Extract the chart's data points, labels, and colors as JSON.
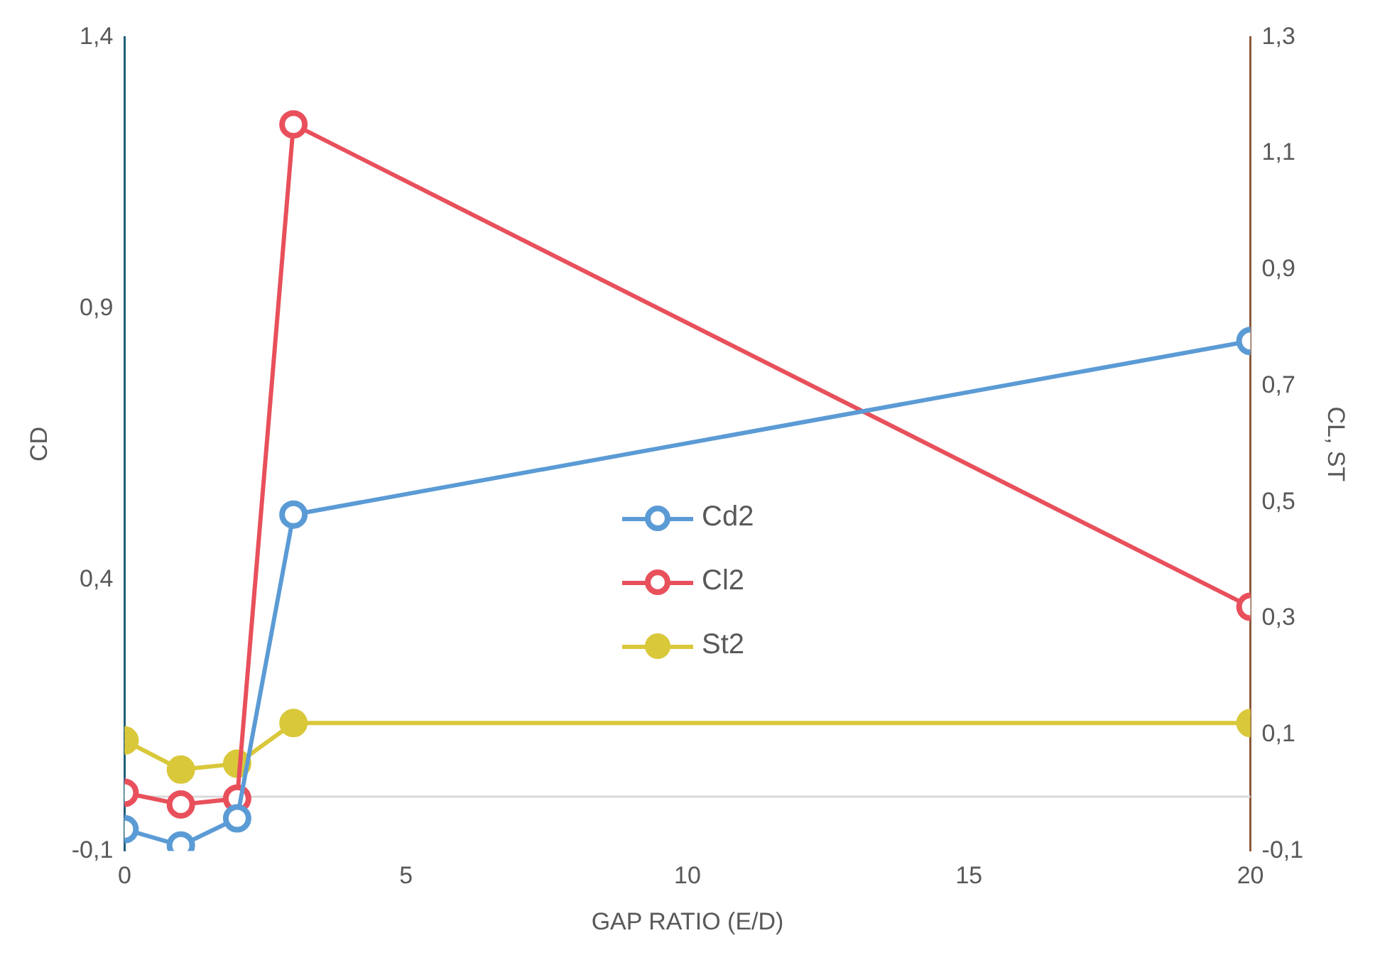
{
  "chart_data": {
    "type": "line",
    "xlabel": "GAP RATIO (E/D)",
    "ylabel": "CD",
    "y2label": "CL, ST",
    "x": [
      0,
      1,
      2,
      3,
      20
    ],
    "series": [
      {
        "name": "Cd2",
        "color": "#5b9bd5",
        "values": [
          -0.06,
          -0.09,
          -0.04,
          0.52,
          0.84
        ]
      },
      {
        "name": "Cl2",
        "color": "#e8505b",
        "axis": "y2",
        "values": [
          0.0,
          -0.02,
          -0.01,
          1.15,
          0.32
        ]
      },
      {
        "name": "St2",
        "color": "#d9c83a",
        "axis": "y2",
        "values": [
          0.09,
          0.04,
          0.05,
          0.12,
          0.12
        ]
      }
    ],
    "xlim": [
      0,
      20
    ],
    "xticks": [
      0,
      5,
      10,
      15,
      20
    ],
    "ylim": [
      -0.1,
      1.4
    ],
    "yticks": [
      {
        "value": -0.1,
        "label": "-0,1"
      },
      {
        "value": 0.4,
        "label": "0,4"
      },
      {
        "value": 0.9,
        "label": "0,9"
      },
      {
        "value": 1.4,
        "label": "1,4"
      }
    ],
    "y2lim": [
      -0.1,
      1.3
    ],
    "y2ticks": [
      {
        "value": -0.1,
        "label": "-0,1"
      },
      {
        "value": 0.1,
        "label": "0,1"
      },
      {
        "value": 0.3,
        "label": "0,3"
      },
      {
        "value": 0.5,
        "label": "0,5"
      },
      {
        "value": 0.7,
        "label": "0,7"
      },
      {
        "value": 0.9,
        "label": "0,9"
      },
      {
        "value": 1.1,
        "label": "1,1"
      },
      {
        "value": 1.3,
        "label": "1,3"
      }
    ],
    "grid": false,
    "legend": "center",
    "marker": "circle",
    "line_style": "solid"
  }
}
